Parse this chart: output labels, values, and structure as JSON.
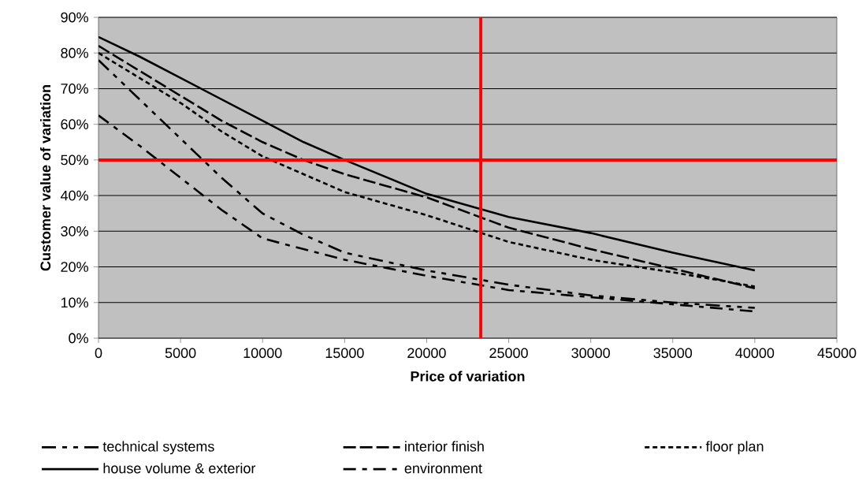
{
  "chart_data": {
    "type": "line",
    "xlabel": "Price of variation",
    "ylabel": "Customer value of variation",
    "x": [
      0,
      2500,
      5000,
      7500,
      10000,
      12500,
      15000,
      20000,
      25000,
      30000,
      35000,
      40000
    ],
    "series": [
      {
        "name": "technical systems",
        "color": "#000000",
        "line_style": "dashed",
        "values": [
          78,
          67,
          56,
          45,
          35,
          29,
          24,
          19,
          15,
          12,
          10,
          8.5
        ]
      },
      {
        "name": "interior finish",
        "color": "#000000",
        "line_style": "dashed",
        "values": [
          82,
          75,
          68,
          61,
          55,
          50,
          46,
          39.5,
          31,
          25,
          19.5,
          14
        ]
      },
      {
        "name": "floor plan",
        "color": "#000000",
        "line_style": "dotted",
        "values": [
          80,
          73,
          66,
          58,
          51,
          46,
          41,
          34.5,
          27,
          22,
          18.5,
          14.5
        ]
      },
      {
        "name": "house volume & exterior",
        "color": "#000000",
        "line_style": "solid",
        "values": [
          84.5,
          79,
          73,
          67,
          61,
          55,
          50,
          40.5,
          34,
          29.5,
          24,
          19
        ]
      },
      {
        "name": "environment",
        "color": "#000000",
        "line_style": "dashed",
        "values": [
          62.5,
          54,
          45,
          36,
          28,
          25,
          22,
          17.5,
          13.5,
          11.5,
          9.5,
          7.5
        ]
      }
    ],
    "xlim": [
      0,
      45000
    ],
    "xticks": [
      0,
      5000,
      10000,
      15000,
      20000,
      25000,
      30000,
      35000,
      40000,
      45000
    ],
    "ylim": [
      0,
      90
    ],
    "yticks": [
      {
        "value": 0,
        "label": "0%"
      },
      {
        "value": 10,
        "label": "10%"
      },
      {
        "value": 20,
        "label": "20%"
      },
      {
        "value": 30,
        "label": "30%"
      },
      {
        "value": 40,
        "label": "40%"
      },
      {
        "value": 50,
        "label": "50%"
      },
      {
        "value": 60,
        "label": "60%"
      },
      {
        "value": 70,
        "label": "70%"
      },
      {
        "value": 80,
        "label": "80%"
      },
      {
        "value": 90,
        "label": "90%"
      }
    ],
    "ref_lines": [
      {
        "axis": "x",
        "value": 23300,
        "color": "#ff0000"
      },
      {
        "axis": "y",
        "value": 50,
        "color": "#ff0000"
      }
    ],
    "grid": "y",
    "legend": "bottom"
  }
}
